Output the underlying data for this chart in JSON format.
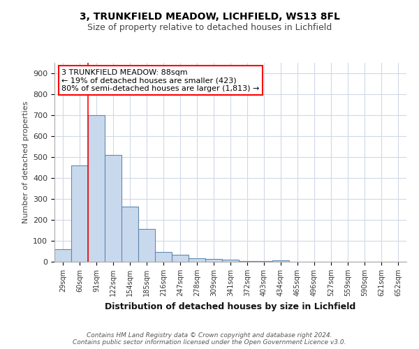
{
  "title1": "3, TRUNKFIELD MEADOW, LICHFIELD, WS13 8FL",
  "title2": "Size of property relative to detached houses in Lichfield",
  "xlabel": "Distribution of detached houses by size in Lichfield",
  "ylabel": "Number of detached properties",
  "categories": [
    "29sqm",
    "60sqm",
    "91sqm",
    "122sqm",
    "154sqm",
    "185sqm",
    "216sqm",
    "247sqm",
    "278sqm",
    "309sqm",
    "341sqm",
    "372sqm",
    "403sqm",
    "434sqm",
    "465sqm",
    "496sqm",
    "527sqm",
    "559sqm",
    "590sqm",
    "621sqm",
    "652sqm"
  ],
  "values": [
    60,
    460,
    700,
    510,
    265,
    158,
    47,
    35,
    18,
    14,
    10,
    5,
    5,
    8,
    0,
    0,
    0,
    0,
    0,
    0,
    0
  ],
  "bar_color": "#c9d9ed",
  "bar_edge_color": "#5f8ab0",
  "vline_color": "red",
  "vline_x_idx": 2,
  "ylim": [
    0,
    950
  ],
  "yticks": [
    0,
    100,
    200,
    300,
    400,
    500,
    600,
    700,
    800,
    900
  ],
  "annotation_text": "3 TRUNKFIELD MEADOW: 88sqm\n← 19% of detached houses are smaller (423)\n80% of semi-detached houses are larger (1,813) →",
  "annotation_box_color": "white",
  "annotation_box_edge_color": "red",
  "footer_text": "Contains HM Land Registry data © Crown copyright and database right 2024.\nContains public sector information licensed under the Open Government Licence v3.0.",
  "background_color": "white",
  "grid_color": "#d0d8e8"
}
